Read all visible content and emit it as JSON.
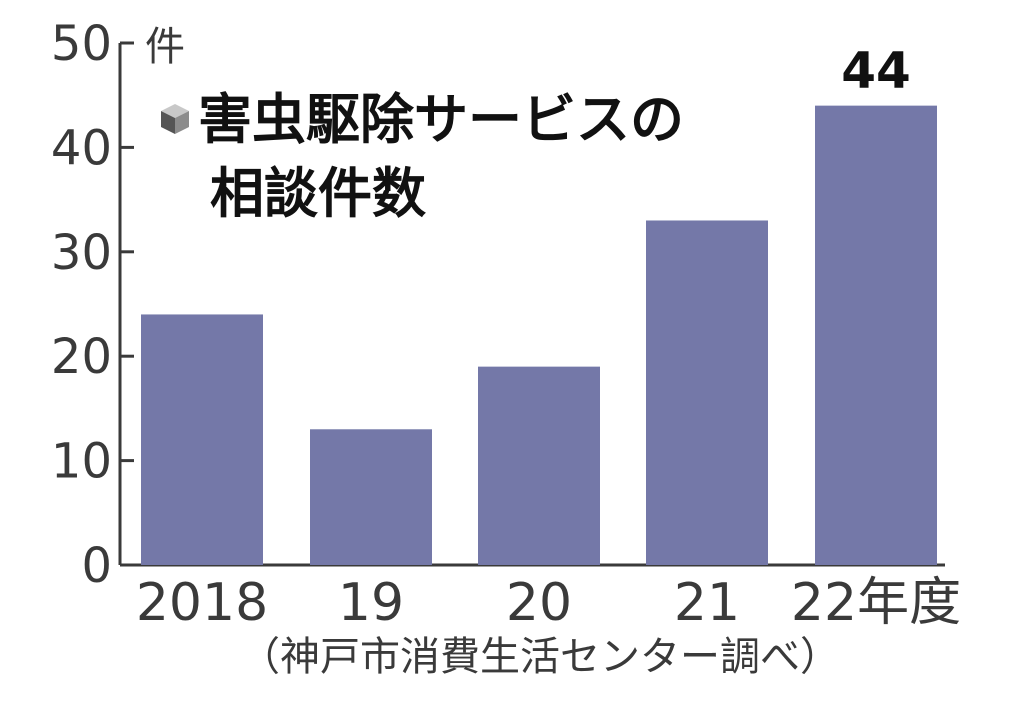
{
  "chart_data": {
    "type": "bar",
    "title_line1": "害虫駆除サービスの",
    "title_line2": "相談件数",
    "y_unit": "件",
    "categories": [
      "2018",
      "19",
      "20",
      "21",
      "22年度"
    ],
    "values": [
      24,
      13,
      19,
      33,
      44
    ],
    "highlight_label": "44",
    "yticks": [
      "0",
      "10",
      "20",
      "30",
      "40",
      "50"
    ],
    "ylim": [
      0,
      50
    ],
    "bar_color": "#7478a8",
    "grid": false,
    "source": "（神戸市消費生活センター調べ）"
  },
  "title_icon": "cube-icon"
}
